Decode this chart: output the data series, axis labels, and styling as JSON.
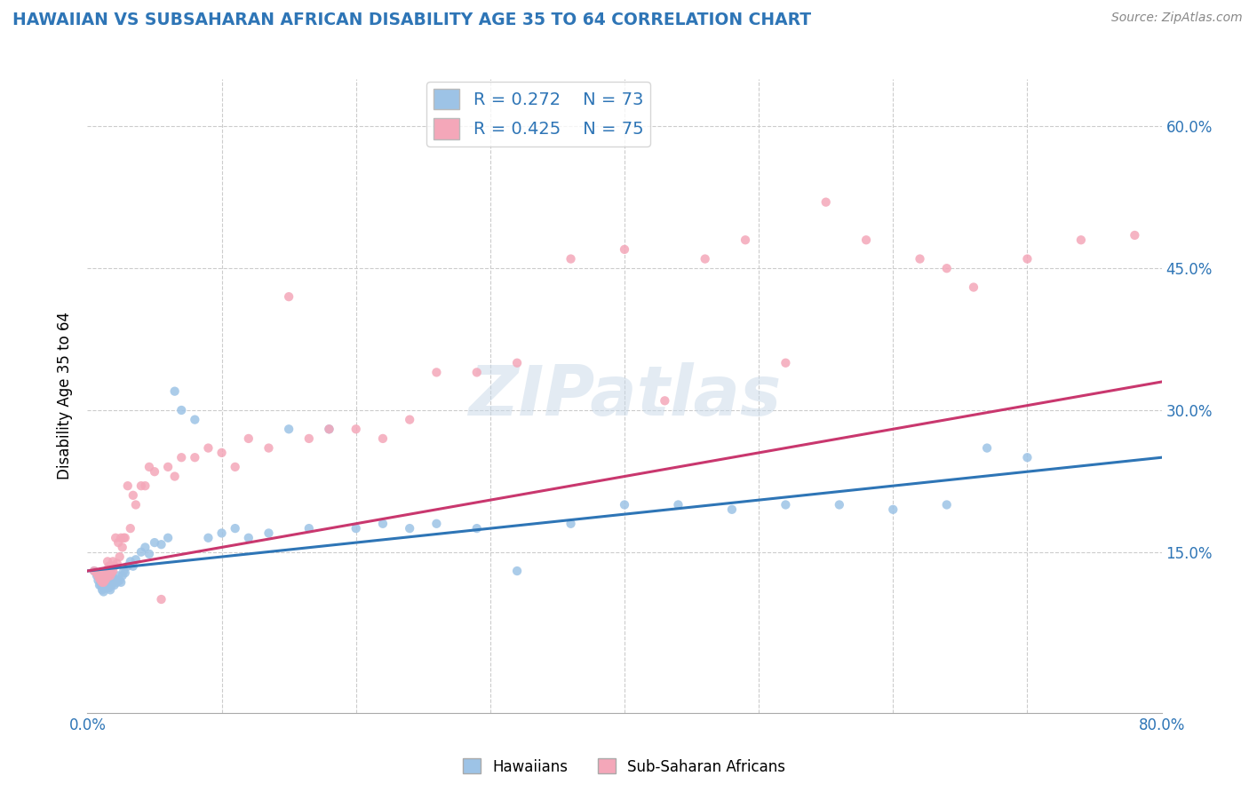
{
  "title": "HAWAIIAN VS SUBSAHARAN AFRICAN DISABILITY AGE 35 TO 64 CORRELATION CHART",
  "source": "Source: ZipAtlas.com",
  "ylabel": "Disability Age 35 to 64",
  "xlim": [
    0.0,
    0.8
  ],
  "ylim": [
    -0.02,
    0.65
  ],
  "ytick_positions": [
    0.15,
    0.3,
    0.45,
    0.6
  ],
  "ytick_labels": [
    "15.0%",
    "30.0%",
    "45.0%",
    "60.0%"
  ],
  "hawaiian_color": "#9dc3e6",
  "subsaharan_color": "#f4a7b9",
  "hawaiian_line_color": "#2e75b6",
  "subsaharan_line_color": "#c9376e",
  "R_hawaiian": 0.272,
  "N_hawaiian": 73,
  "R_subsaharan": 0.425,
  "N_subsaharan": 75,
  "watermark": "ZIPatlas",
  "background_color": "#ffffff",
  "grid_color": "#cccccc",
  "hawaiian_x": [
    0.005,
    0.007,
    0.008,
    0.009,
    0.01,
    0.01,
    0.011,
    0.011,
    0.012,
    0.012,
    0.013,
    0.013,
    0.014,
    0.014,
    0.014,
    0.015,
    0.015,
    0.015,
    0.016,
    0.016,
    0.017,
    0.017,
    0.018,
    0.018,
    0.019,
    0.019,
    0.02,
    0.02,
    0.021,
    0.022,
    0.023,
    0.024,
    0.025,
    0.026,
    0.027,
    0.028,
    0.03,
    0.032,
    0.034,
    0.036,
    0.04,
    0.043,
    0.046,
    0.05,
    0.055,
    0.06,
    0.065,
    0.07,
    0.08,
    0.09,
    0.1,
    0.11,
    0.12,
    0.135,
    0.15,
    0.165,
    0.18,
    0.2,
    0.22,
    0.24,
    0.26,
    0.29,
    0.32,
    0.36,
    0.4,
    0.44,
    0.48,
    0.52,
    0.56,
    0.6,
    0.64,
    0.67,
    0.7
  ],
  "hawaiian_y": [
    0.13,
    0.125,
    0.12,
    0.115,
    0.115,
    0.118,
    0.11,
    0.12,
    0.108,
    0.112,
    0.115,
    0.12,
    0.112,
    0.118,
    0.122,
    0.115,
    0.12,
    0.125,
    0.112,
    0.118,
    0.11,
    0.12,
    0.115,
    0.122,
    0.118,
    0.12,
    0.115,
    0.122,
    0.12,
    0.118,
    0.125,
    0.12,
    0.118,
    0.125,
    0.13,
    0.128,
    0.135,
    0.14,
    0.135,
    0.142,
    0.15,
    0.155,
    0.148,
    0.16,
    0.158,
    0.165,
    0.32,
    0.3,
    0.29,
    0.165,
    0.17,
    0.175,
    0.165,
    0.17,
    0.28,
    0.175,
    0.28,
    0.175,
    0.18,
    0.175,
    0.18,
    0.175,
    0.13,
    0.18,
    0.2,
    0.2,
    0.195,
    0.2,
    0.2,
    0.195,
    0.2,
    0.26,
    0.25
  ],
  "subsaharan_x": [
    0.005,
    0.007,
    0.008,
    0.009,
    0.01,
    0.01,
    0.011,
    0.011,
    0.012,
    0.012,
    0.013,
    0.013,
    0.014,
    0.014,
    0.015,
    0.015,
    0.015,
    0.016,
    0.016,
    0.017,
    0.017,
    0.018,
    0.018,
    0.019,
    0.019,
    0.02,
    0.021,
    0.022,
    0.023,
    0.024,
    0.025,
    0.026,
    0.027,
    0.028,
    0.03,
    0.032,
    0.034,
    0.036,
    0.04,
    0.043,
    0.046,
    0.05,
    0.055,
    0.06,
    0.065,
    0.07,
    0.08,
    0.09,
    0.1,
    0.11,
    0.12,
    0.135,
    0.15,
    0.165,
    0.18,
    0.2,
    0.22,
    0.24,
    0.26,
    0.29,
    0.32,
    0.36,
    0.4,
    0.43,
    0.46,
    0.49,
    0.52,
    0.55,
    0.58,
    0.62,
    0.64,
    0.66,
    0.7,
    0.74,
    0.78
  ],
  "subsaharan_y": [
    0.13,
    0.128,
    0.125,
    0.122,
    0.12,
    0.125,
    0.118,
    0.122,
    0.118,
    0.125,
    0.12,
    0.128,
    0.122,
    0.13,
    0.125,
    0.13,
    0.14,
    0.128,
    0.135,
    0.125,
    0.132,
    0.128,
    0.135,
    0.13,
    0.14,
    0.135,
    0.165,
    0.138,
    0.16,
    0.145,
    0.165,
    0.155,
    0.165,
    0.165,
    0.22,
    0.175,
    0.21,
    0.2,
    0.22,
    0.22,
    0.24,
    0.235,
    0.1,
    0.24,
    0.23,
    0.25,
    0.25,
    0.26,
    0.255,
    0.24,
    0.27,
    0.26,
    0.42,
    0.27,
    0.28,
    0.28,
    0.27,
    0.29,
    0.34,
    0.34,
    0.35,
    0.46,
    0.47,
    0.31,
    0.46,
    0.48,
    0.35,
    0.52,
    0.48,
    0.46,
    0.45,
    0.43,
    0.46,
    0.48,
    0.485
  ]
}
